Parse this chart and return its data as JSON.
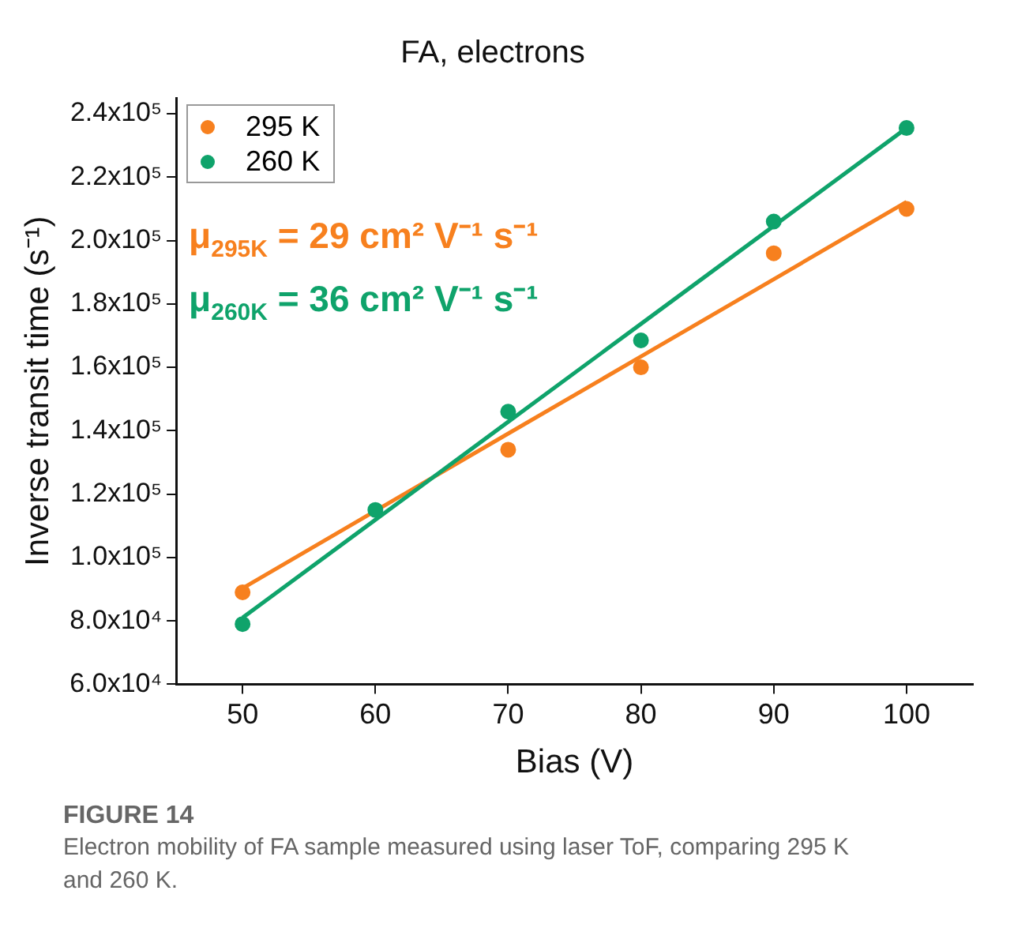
{
  "chart_data": {
    "type": "scatter",
    "title": "FA, electrons",
    "xlabel": "Bias (V)",
    "ylabel": "Inverse transit time (s⁻¹)",
    "x": [
      50,
      60,
      70,
      80,
      90,
      100
    ],
    "series": [
      {
        "name": "295 K",
        "color": "#f7801e",
        "values": [
          89000,
          null,
          134000,
          160000,
          196000,
          210000
        ]
      },
      {
        "name": "260 K",
        "color": "#0fa36b",
        "values": [
          79000,
          115000,
          146000,
          168500,
          206000,
          235500
        ]
      },
      {
        "type": "line",
        "color": "#f7801e",
        "marker": "none",
        "values": [
          90300,
          114700,
          139100,
          163400,
          187800,
          212200
        ]
      },
      {
        "type": "line",
        "color": "#0fa36b",
        "marker": "none",
        "values": [
          81000,
          111900,
          142800,
          173700,
          204600,
          235500
        ]
      }
    ],
    "xlim": [
      45,
      105
    ],
    "xticks": [
      50,
      60,
      70,
      80,
      90,
      100
    ],
    "ylim": [
      60000,
      245000
    ],
    "yticks": [
      {
        "value": 60000,
        "label": "6.0x10⁴"
      },
      {
        "value": 80000,
        "label": "8.0x10⁴"
      },
      {
        "value": 100000,
        "label": "1.0x10⁵"
      },
      {
        "value": 120000,
        "label": "1.2x10⁵"
      },
      {
        "value": 140000,
        "label": "1.4x10⁵"
      },
      {
        "value": 160000,
        "label": "1.6x10⁵"
      },
      {
        "value": 180000,
        "label": "1.8x10⁵"
      },
      {
        "value": 200000,
        "label": "2.0x10⁵"
      },
      {
        "value": 220000,
        "label": "2.2x10⁵"
      },
      {
        "value": 240000,
        "label": "2.4x10⁵"
      }
    ],
    "annotations": [
      "μ$_{295K}$ = 29 cm² V⁻¹ s⁻¹",
      "μ$_{260K}$ = 36 cm² V⁻¹ s⁻¹",
      "FIGURE 14",
      "Electron mobility of FA sample measured using laser ToF, comparing 295 K and 260 K."
    ],
    "grid": false,
    "legend": "top left",
    "marker": "circle",
    "line_style": "solid"
  }
}
